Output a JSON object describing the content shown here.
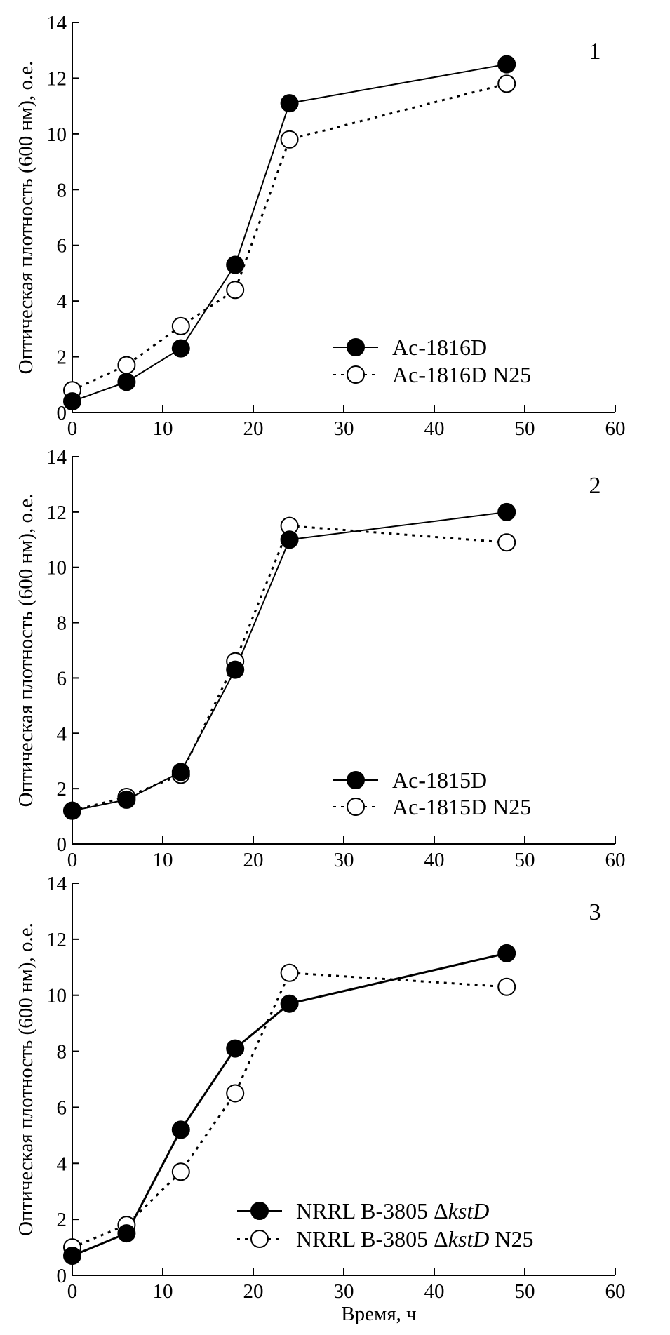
{
  "chart_data": [
    {
      "type": "line",
      "panel_label": "1",
      "xlabel": "",
      "ylabel": "Оптическая плотность (600 нм), о.е.",
      "xlim": [
        0,
        60
      ],
      "ylim": [
        0,
        14
      ],
      "xticks": [
        0,
        10,
        20,
        30,
        40,
        50,
        60
      ],
      "yticks": [
        0,
        2,
        4,
        6,
        8,
        10,
        12,
        14
      ],
      "grid": false,
      "legend_position": "bottom-right",
      "series": [
        {
          "name": "Ac-1816D",
          "marker": "filled-circle",
          "line": "solid",
          "x": [
            0,
            6,
            12,
            18,
            24,
            48
          ],
          "y": [
            0.4,
            1.1,
            2.3,
            5.3,
            11.1,
            12.5
          ]
        },
        {
          "name": "Ac-1816D N25",
          "marker": "open-circle",
          "line": "dotted",
          "x": [
            0,
            6,
            12,
            18,
            24,
            48
          ],
          "y": [
            0.8,
            1.7,
            3.1,
            4.4,
            9.8,
            11.8
          ]
        }
      ]
    },
    {
      "type": "line",
      "panel_label": "2",
      "xlabel": "",
      "ylabel": "Оптическая плотность (600 нм), о.е.",
      "xlim": [
        0,
        60
      ],
      "ylim": [
        0,
        14
      ],
      "xticks": [
        0,
        10,
        20,
        30,
        40,
        50,
        60
      ],
      "yticks": [
        0,
        2,
        4,
        6,
        8,
        10,
        12,
        14
      ],
      "grid": false,
      "legend_position": "bottom-right",
      "series": [
        {
          "name": "Ac-1815D",
          "marker": "filled-circle",
          "line": "solid",
          "x": [
            0,
            6,
            12,
            18,
            24,
            48
          ],
          "y": [
            1.2,
            1.6,
            2.6,
            6.3,
            11.0,
            12.0
          ]
        },
        {
          "name": "Ac-1815D N25",
          "marker": "open-circle",
          "line": "dotted",
          "x": [
            0,
            6,
            12,
            18,
            24,
            48
          ],
          "y": [
            1.2,
            1.7,
            2.5,
            6.6,
            11.5,
            10.9
          ]
        }
      ]
    },
    {
      "type": "line",
      "panel_label": "3",
      "xlabel": "Время, ч",
      "ylabel": "Оптическая плотность (600 нм), о.е.",
      "xlim": [
        0,
        60
      ],
      "ylim": [
        0,
        14
      ],
      "xticks": [
        0,
        10,
        20,
        30,
        40,
        50,
        60
      ],
      "yticks": [
        0,
        2,
        4,
        6,
        8,
        10,
        12,
        14
      ],
      "grid": false,
      "legend_position": "bottom-right",
      "series": [
        {
          "name": "NRRL B-3805 ΔkstD",
          "name_parts": [
            "NRRL B-3805 Δ",
            "kstD",
            ""
          ],
          "marker": "filled-circle",
          "line": "solid",
          "x": [
            0,
            6,
            12,
            18,
            24,
            48
          ],
          "y": [
            0.7,
            1.5,
            5.2,
            8.1,
            9.7,
            11.5
          ]
        },
        {
          "name": "NRRL B-3805 ΔkstD N25",
          "name_parts": [
            "NRRL B-3805 Δ",
            "kstD",
            " N25"
          ],
          "marker": "open-circle",
          "line": "dotted",
          "x": [
            0,
            6,
            12,
            18,
            24,
            48
          ],
          "y": [
            1.0,
            1.8,
            3.7,
            6.5,
            10.8,
            10.3
          ]
        }
      ]
    }
  ]
}
